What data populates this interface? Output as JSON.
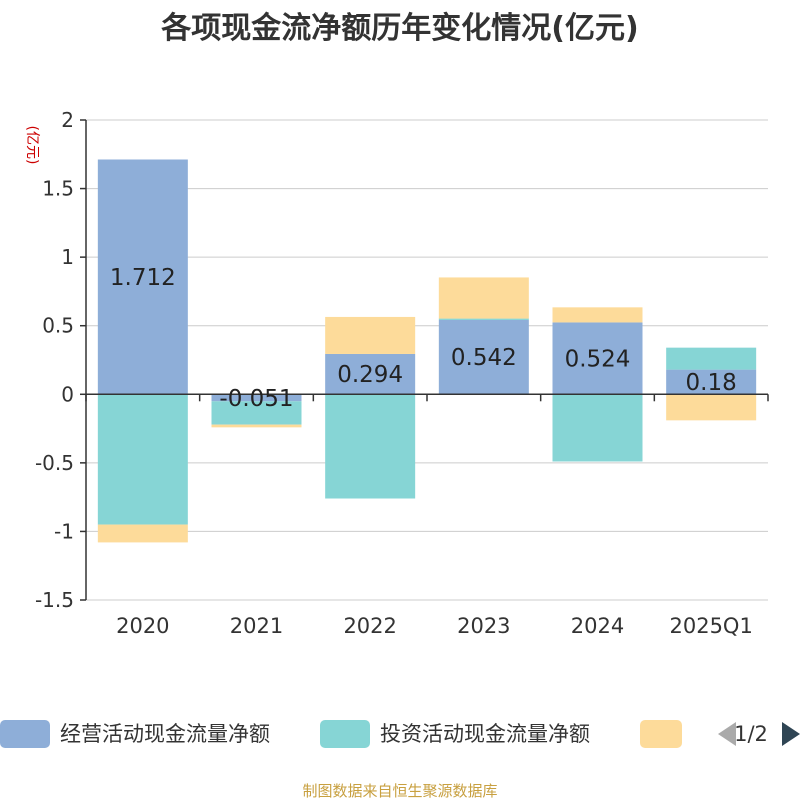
{
  "chart_data": {
    "type": "bar",
    "stacked": true,
    "title": "各项现金流净额历年变化情况(亿元)",
    "ylabel": "(亿元)",
    "xlabel": "",
    "categories": [
      "2020",
      "2021",
      "2022",
      "2023",
      "2024",
      "2025Q1"
    ],
    "ylim": [
      -1.5,
      2
    ],
    "yticks": [
      2,
      1.5,
      1,
      0.5,
      0,
      -0.5,
      -1,
      -1.5
    ],
    "ytick_labels": [
      "2",
      "1.5",
      "1",
      "0.5",
      "0",
      "-0.5",
      "-1",
      "-1.5"
    ],
    "grid": true,
    "series": [
      {
        "name": "经营活动现金流量净额",
        "color": "#8eaed8",
        "values": [
          1.712,
          -0.051,
          0.294,
          0.542,
          0.524,
          0.18
        ],
        "labels": [
          "1.712",
          "-0.051",
          "0.294",
          "0.542",
          "0.524",
          "0.18"
        ]
      },
      {
        "name": "投资活动现金流量净额",
        "color": "#86d5d5",
        "values": [
          -0.95,
          -0.17,
          -0.76,
          0.01,
          -0.49,
          0.16
        ]
      },
      {
        "name": "",
        "color": "#fddb9a",
        "values": [
          -0.13,
          -0.02,
          0.27,
          0.3,
          0.11,
          -0.19
        ]
      }
    ],
    "legend_position": "bottom",
    "pager": "1/2",
    "unit_color": "#cc0000"
  },
  "footer": {
    "source": "制图数据来自恒生聚源数据库",
    "color": "#c8a040"
  }
}
